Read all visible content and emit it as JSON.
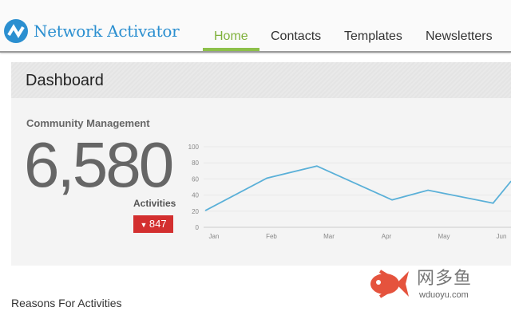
{
  "header": {
    "app_name": "Network Activator",
    "nav": [
      {
        "label": "Home",
        "active": true
      },
      {
        "label": "Contacts"
      },
      {
        "label": "Templates"
      },
      {
        "label": "Newsletters"
      }
    ]
  },
  "dashboard": {
    "title": "Dashboard",
    "section": "Community Management",
    "metric": "6,580",
    "metric_label": "Activities",
    "change": "847",
    "change_direction": "down",
    "change_color": "#d32f2f"
  },
  "chart_data": {
    "type": "line",
    "ylim": [
      0,
      100
    ],
    "yticks": [
      "0",
      "20",
      "40",
      "60",
      "80",
      "100"
    ],
    "xticks": [
      "Jan",
      "Feb",
      "Mar",
      "Apr",
      "May",
      "Jun"
    ],
    "grid": true,
    "color": "#5ab0d8",
    "points": [
      {
        "date": "Dec 27",
        "value": 21
      },
      {
        "date": "Jan 29",
        "value": 61
      },
      {
        "date": "Feb 25",
        "value": 76
      },
      {
        "date": "Apr 4",
        "value": 34
      },
      {
        "date": "Apr 23",
        "value": 46
      },
      {
        "date": "May 27",
        "value": 30
      },
      {
        "date": "Jun 6",
        "value": 57
      }
    ]
  },
  "footer": {
    "section_title": "Reasons For Activities"
  },
  "watermark": {
    "name": "网多鱼",
    "url": "wduoyu.com"
  }
}
